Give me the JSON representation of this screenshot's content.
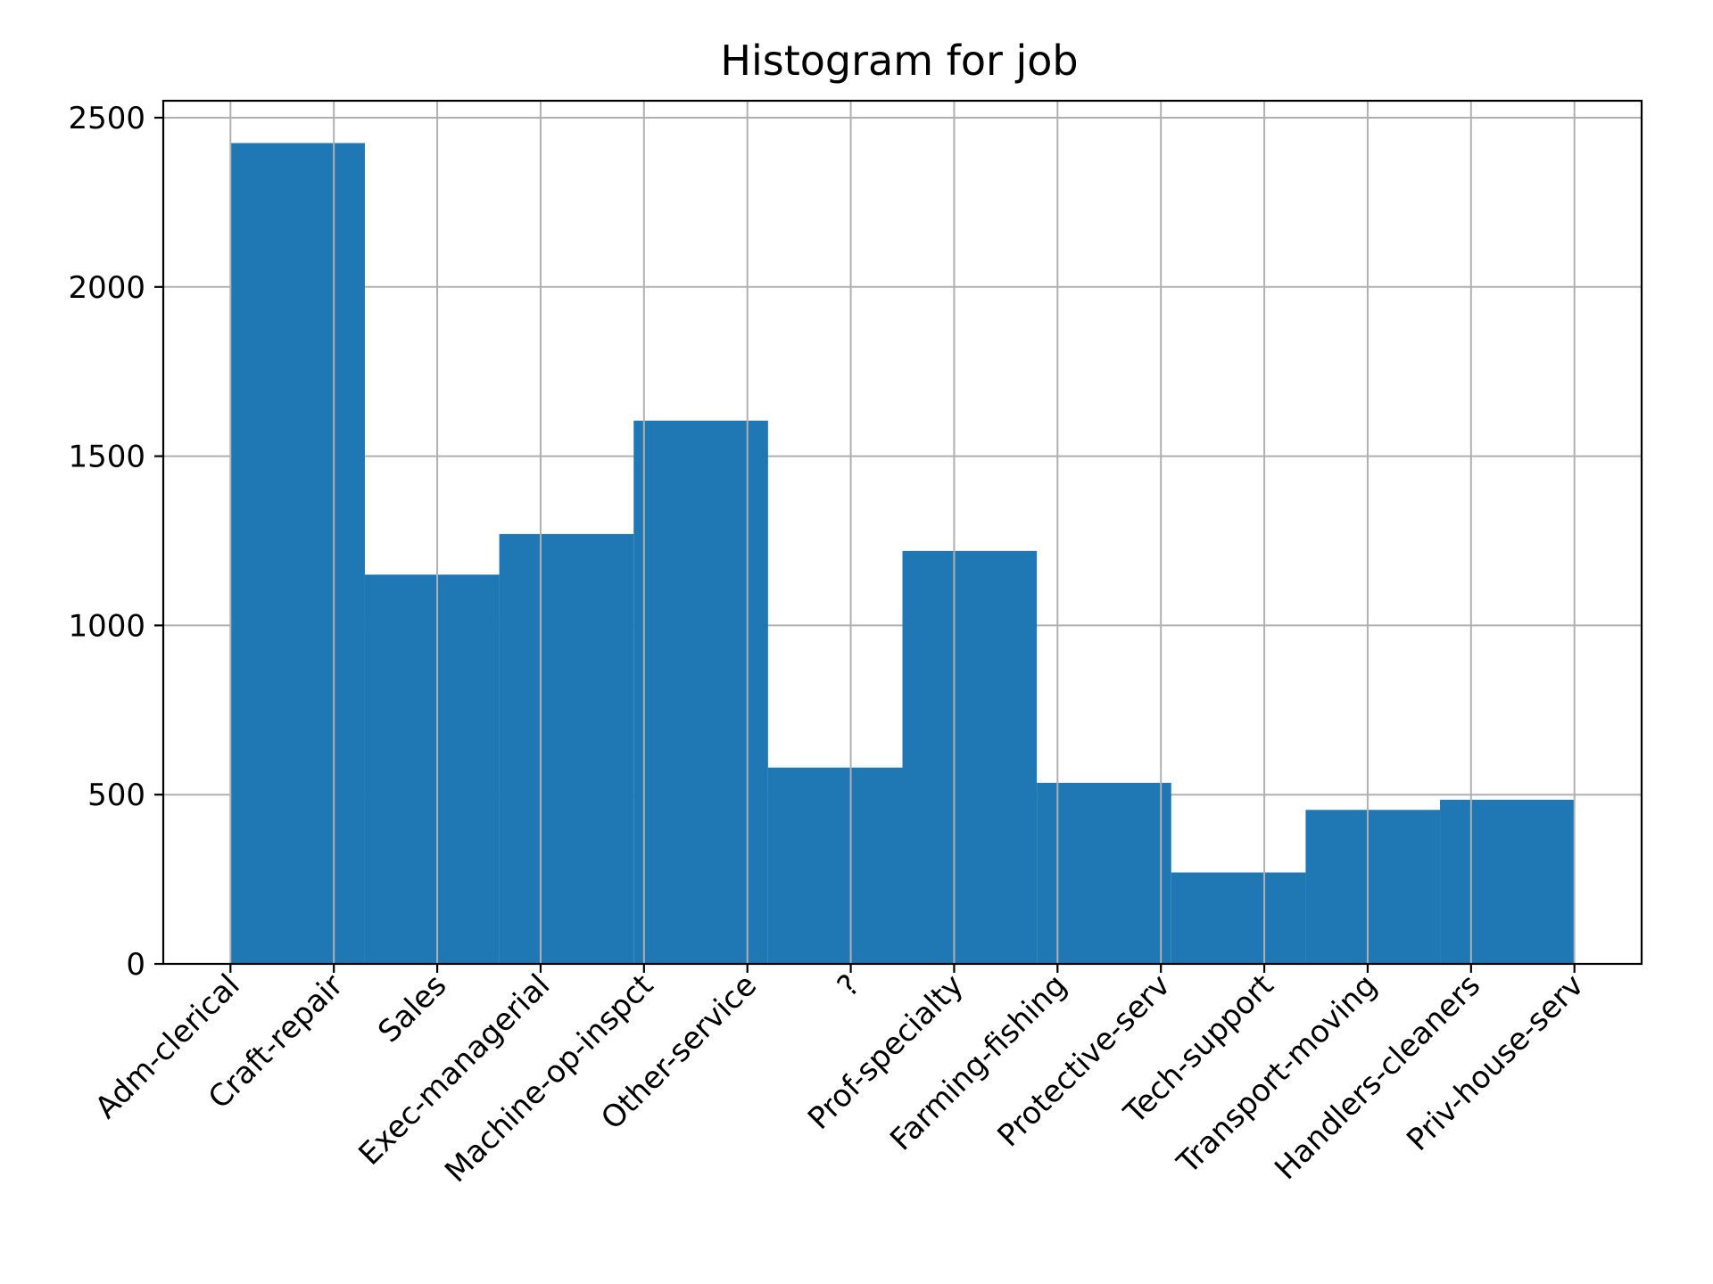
{
  "chart_data": {
    "type": "bar",
    "title": "Histogram for job",
    "xlabel": "",
    "ylabel": "",
    "x_tick_labels": [
      "Adm-clerical",
      "Craft-repair",
      "Sales",
      "Exec-managerial",
      "Machine-op-inspct",
      "Other-service",
      "?",
      "Prof-specialty",
      "Farming-fishing",
      "Protective-serv",
      "Tech-support",
      "Transport-moving",
      "Handlers-cleaners",
      "Priv-house-serv"
    ],
    "x_tick_positions": [
      0,
      1,
      2,
      3,
      4,
      5,
      6,
      7,
      8,
      9,
      10,
      11,
      12,
      13
    ],
    "bin_edges": [
      0,
      1.3,
      2.6,
      3.9,
      5.2,
      6.5,
      7.8,
      9.1,
      10.4,
      11.7,
      13.0
    ],
    "values": [
      2425,
      1150,
      1270,
      1605,
      580,
      1220,
      535,
      270,
      455,
      485
    ],
    "xlim": [
      -0.65,
      13.65
    ],
    "ylim": [
      0,
      2550
    ],
    "y_ticks": [
      0,
      500,
      1000,
      1500,
      2000,
      2500
    ],
    "grid": true,
    "bar_color": "#1f77b4"
  }
}
